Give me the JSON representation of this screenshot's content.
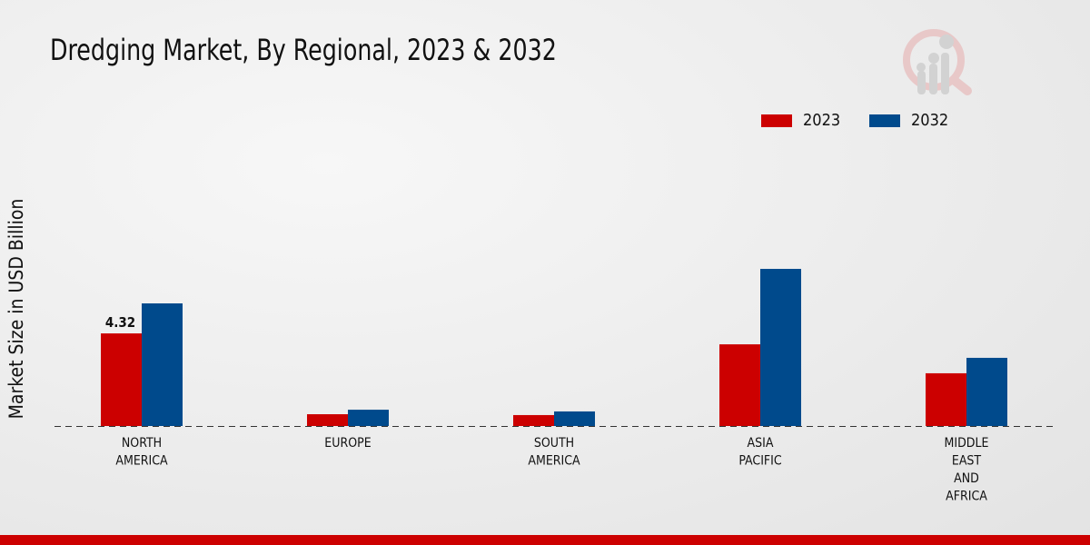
{
  "chart_data": {
    "type": "bar",
    "title": "Dredging Market, By Regional, 2023 & 2032",
    "xlabel": "",
    "ylabel": "Market Size in USD Billion",
    "categories": [
      [
        "NORTH",
        "AMERICA"
      ],
      [
        "EUROPE"
      ],
      [
        "SOUTH",
        "AMERICA"
      ],
      [
        "ASIA",
        "PACIFIC"
      ],
      [
        "MIDDLE",
        "EAST",
        "AND",
        "AFRICA"
      ]
    ],
    "series": [
      {
        "name": "2023",
        "color": "#cc0000",
        "values": [
          4.32,
          0.55,
          0.51,
          3.81,
          2.46
        ]
      },
      {
        "name": "2032",
        "color": "#004a8c",
        "values": [
          5.72,
          0.76,
          0.68,
          7.33,
          3.18
        ]
      }
    ],
    "data_labels": [
      {
        "series": 0,
        "index": 0,
        "text": "4.32"
      }
    ],
    "legend_position": "top-right",
    "grid": false
  }
}
